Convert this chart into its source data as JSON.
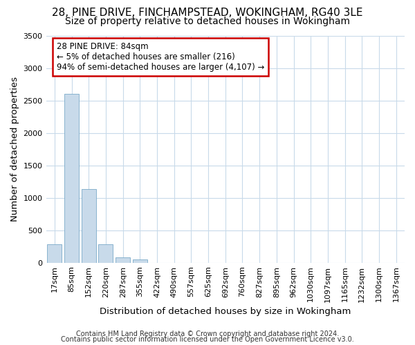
{
  "title": "28, PINE DRIVE, FINCHAMPSTEAD, WOKINGHAM, RG40 3LE",
  "subtitle": "Size of property relative to detached houses in Wokingham",
  "xlabel": "Distribution of detached houses by size in Wokingham",
  "ylabel": "Number of detached properties",
  "bar_color": "#c8daea",
  "bar_edge_color": "#7aaac8",
  "annotation_box_color": "#cc0000",
  "annotation_text": "28 PINE DRIVE: 84sqm\n← 5% of detached houses are smaller (216)\n94% of semi-detached houses are larger (4,107) →",
  "ylim": [
    0,
    3500
  ],
  "yticks": [
    0,
    500,
    1000,
    1500,
    2000,
    2500,
    3000,
    3500
  ],
  "categories": [
    "17sqm",
    "85sqm",
    "152sqm",
    "220sqm",
    "287sqm",
    "355sqm",
    "422sqm",
    "490sqm",
    "557sqm",
    "625sqm",
    "692sqm",
    "760sqm",
    "827sqm",
    "895sqm",
    "962sqm",
    "1030sqm",
    "1097sqm",
    "1165sqm",
    "1232sqm",
    "1300sqm",
    "1367sqm"
  ],
  "values": [
    280,
    2600,
    1130,
    280,
    80,
    50,
    0,
    0,
    0,
    0,
    0,
    0,
    0,
    0,
    0,
    0,
    0,
    0,
    0,
    0,
    0
  ],
  "footer_line1": "Contains HM Land Registry data © Crown copyright and database right 2024.",
  "footer_line2": "Contains public sector information licensed under the Open Government Licence v3.0.",
  "background_color": "#ffffff",
  "plot_bg_color": "#ffffff",
  "grid_color": "#c8daea",
  "title_fontsize": 11,
  "subtitle_fontsize": 10,
  "axis_label_fontsize": 9.5,
  "tick_fontsize": 8,
  "footer_fontsize": 7
}
